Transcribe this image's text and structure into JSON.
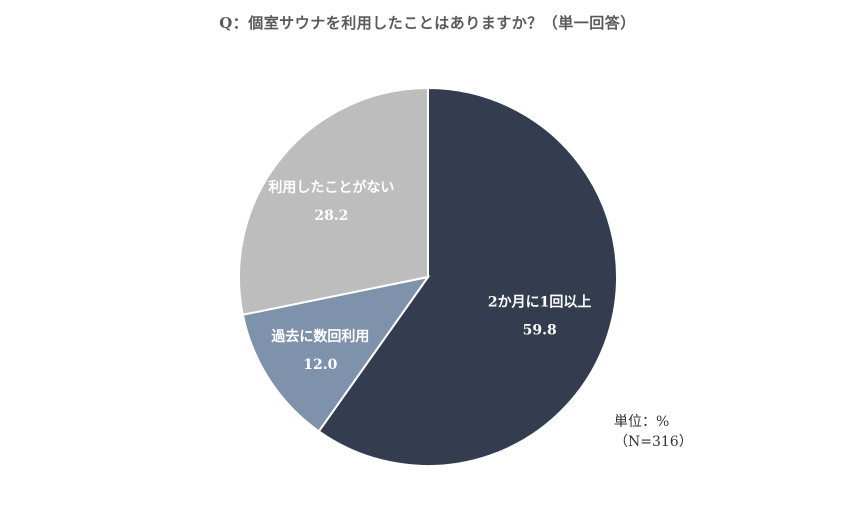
{
  "chart_data": {
    "type": "pie",
    "title": "Q：個室サウナを利用したことはありますか？（単一回答）",
    "slices": [
      {
        "label": "2か月に1回以上",
        "value": 59.8,
        "color": "#343d4f"
      },
      {
        "label": "過去に数回利用",
        "value": 12.0,
        "color": "#7f92ab"
      },
      {
        "label": "利用したことがない",
        "value": 28.2,
        "color": "#bdbdbd"
      }
    ],
    "unit": "単位：%",
    "sample": "（N=316）"
  }
}
